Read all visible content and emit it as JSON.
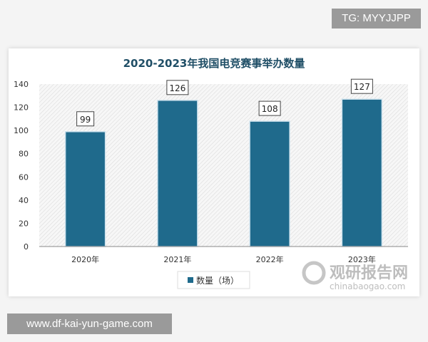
{
  "overlay": {
    "tg_label": "TG: MYYJJPP",
    "url_label": "www.df-kai-yun-game.com"
  },
  "watermark": {
    "cn": "观研报告网",
    "en": "chinabaogao.com"
  },
  "colors": {
    "bar": "#1f6a8c",
    "title": "#1f4e66"
  },
  "chart_data": {
    "type": "bar",
    "title": "2020-2023年我国电竞赛事举办数量",
    "categories": [
      "2020年",
      "2021年",
      "2022年",
      "2023年"
    ],
    "series": [
      {
        "name": "数量（场）",
        "values": [
          99,
          126,
          108,
          127
        ]
      }
    ],
    "ylim": [
      0,
      140
    ],
    "yticks": [
      0,
      20,
      40,
      60,
      80,
      100,
      120,
      140
    ],
    "data_labels": true,
    "grid": false,
    "legend": "bottom"
  }
}
